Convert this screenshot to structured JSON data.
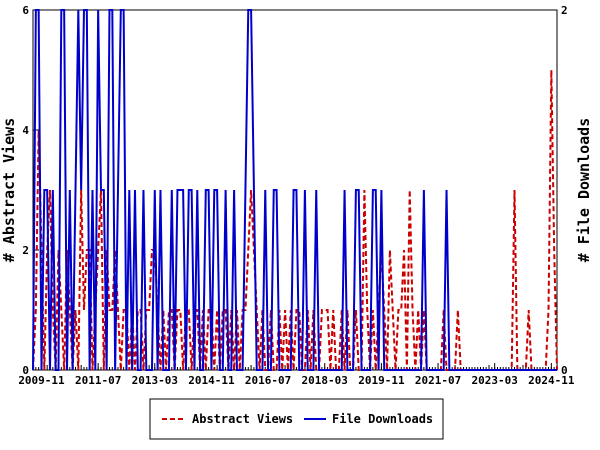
{
  "chart_data": {
    "type": "line",
    "title": "",
    "background": "#ffffff",
    "frame_color": "#000000",
    "x_start_month": "2009-08",
    "x_tick_labels": [
      "2009-11",
      "2011-07",
      "2013-03",
      "2014-11",
      "2016-07",
      "2018-03",
      "2019-11",
      "2021-07",
      "2023-03",
      "2024-11"
    ],
    "x_tick_indices": [
      3,
      23,
      43,
      63,
      83,
      103,
      123,
      143,
      163,
      183
    ],
    "left_axis": {
      "label": "# Abstract Views",
      "min": 0,
      "max": 6,
      "ticks": [
        0,
        2,
        4,
        6
      ]
    },
    "right_axis": {
      "label": "# File Downloads",
      "min": 0,
      "max": 2,
      "ticks": [
        0,
        2
      ]
    },
    "legend": {
      "position": "bottom-center"
    },
    "series": [
      {
        "name": "Abstract Views",
        "axis": "left",
        "color": "#cc0000",
        "style": "dashed",
        "values": [
          0,
          1,
          4,
          2,
          0,
          2,
          3,
          1,
          0,
          2,
          1,
          0,
          2,
          1,
          0,
          1,
          0,
          3,
          1,
          2,
          2,
          0,
          1,
          2,
          3,
          0,
          2,
          1,
          1,
          2,
          1,
          0,
          1,
          1,
          0,
          1,
          0,
          1,
          1,
          0,
          1,
          1,
          2,
          2,
          1,
          0,
          1,
          0,
          1,
          1,
          0,
          1,
          1,
          0,
          1,
          1,
          0,
          1,
          1,
          0,
          1,
          0,
          1,
          1,
          0,
          1,
          0,
          1,
          1,
          0,
          1,
          0,
          1,
          0,
          1,
          1,
          2,
          3,
          2,
          1,
          0,
          1,
          0,
          0,
          1,
          0,
          0,
          1,
          0,
          1,
          0,
          1,
          0,
          1,
          1,
          0,
          0,
          1,
          0,
          1,
          0,
          0,
          1,
          1,
          1,
          0,
          1,
          0,
          0,
          1,
          0,
          1,
          0,
          0,
          1,
          0,
          0,
          3,
          1,
          0,
          1,
          0,
          1,
          2,
          1,
          0,
          2,
          1,
          0,
          1,
          1,
          2,
          0,
          3,
          1,
          0,
          1,
          0,
          1,
          0,
          0,
          0,
          0,
          0,
          0,
          1,
          0,
          0,
          0,
          0,
          1,
          0,
          0,
          0,
          0,
          0,
          0,
          0,
          0,
          0,
          0,
          0,
          0,
          0,
          0,
          0,
          0,
          0,
          0,
          0,
          3,
          0,
          0,
          0,
          0,
          1,
          0,
          0,
          0,
          0,
          0,
          0,
          1,
          5,
          2,
          0
        ]
      },
      {
        "name": "File Downloads",
        "axis": "right",
        "color": "#0000cc",
        "style": "solid",
        "values": [
          0,
          2,
          2,
          0,
          1,
          1,
          0,
          1,
          0,
          0,
          2,
          2,
          0,
          1,
          0,
          1,
          2,
          1,
          2,
          2,
          0,
          1,
          0,
          2,
          1,
          1,
          0,
          2,
          2,
          0,
          1,
          2,
          2,
          0,
          1,
          0,
          1,
          0,
          0,
          1,
          0,
          0,
          0,
          1,
          0,
          1,
          0,
          0,
          0,
          1,
          0,
          1,
          1,
          1,
          0,
          1,
          1,
          0,
          1,
          0,
          0,
          1,
          1,
          0,
          1,
          1,
          0,
          0,
          1,
          0,
          0,
          1,
          0,
          0,
          0,
          1,
          2,
          2,
          1,
          0,
          0,
          0,
          1,
          0,
          0,
          1,
          1,
          0,
          0,
          0,
          0,
          0,
          1,
          1,
          0,
          0,
          1,
          0,
          0,
          0,
          1,
          0,
          0,
          0,
          0,
          0,
          0,
          0,
          0,
          0,
          1,
          0,
          0,
          0,
          1,
          1,
          0,
          0,
          0,
          0,
          1,
          1,
          0,
          1,
          0,
          0,
          0,
          0,
          0,
          0,
          0,
          0,
          0,
          0,
          0,
          0,
          0,
          0,
          1,
          0,
          0,
          0,
          0,
          0,
          0,
          0,
          1,
          0,
          0,
          0,
          0,
          0,
          0,
          0,
          0,
          0,
          0,
          0,
          0,
          0,
          0,
          0,
          0,
          0,
          0,
          0,
          0,
          0,
          0,
          0,
          0,
          0,
          0,
          0,
          0,
          0,
          0,
          0,
          0,
          0,
          0,
          0,
          0,
          0,
          0,
          0
        ]
      }
    ]
  }
}
